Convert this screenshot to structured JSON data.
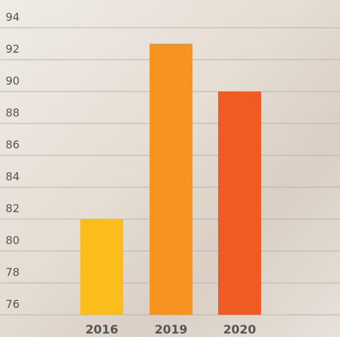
{
  "chart_data": {
    "type": "bar",
    "categories": [
      "2016",
      "2019",
      "2020"
    ],
    "values": [
      82,
      93,
      90
    ],
    "colors": [
      "#fbbd1c",
      "#f7941f",
      "#f05a23"
    ],
    "ylim": [
      76,
      94
    ],
    "yticks": [
      76,
      78,
      80,
      82,
      84,
      86,
      88,
      90,
      92,
      94
    ],
    "grid": true
  }
}
